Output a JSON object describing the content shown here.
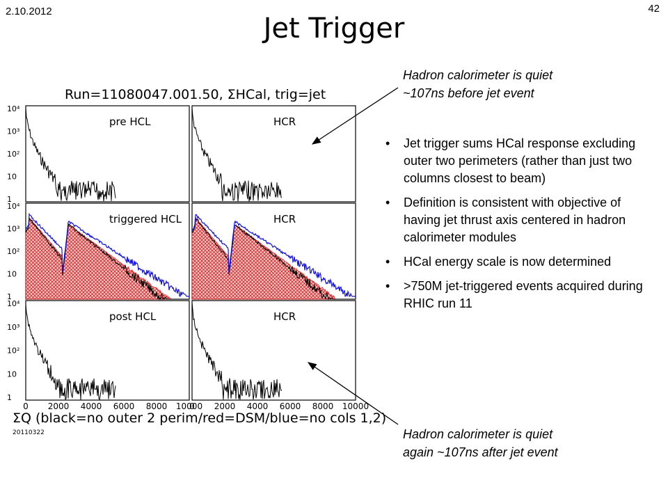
{
  "slide": {
    "date": "2.10.2012",
    "number": "42",
    "title": "Jet Trigger"
  },
  "notes": {
    "top": [
      "Hadron calorimeter is quiet",
      "~107ns before jet event"
    ],
    "bottom": [
      "Hadron calorimeter is quiet",
      "again ~107ns after jet event"
    ]
  },
  "bullets": [
    "Jet trigger sums HCal response excluding outer two perimeters (rather than just two columns closest to beam)",
    "Definition is consistent with objective of having jet thrust axis centered in hadron calorimeter modules",
    "HCal energy scale is now determined",
    ">750M jet-triggered events acquired during RHIC run 11"
  ],
  "figure": {
    "header": "Run=11080047.001.50, ΣHCal, trig=jet",
    "xaxis_caption": "ΣQ (black=no outer 2 perim/red=DSM/blue=no cols 1,2)",
    "datestamp": "20110322",
    "panel_labels": [
      "pre HCL",
      "HCR",
      "triggered HCL",
      "HCR",
      "post HCL",
      "HCR"
    ],
    "x_ticks": [
      "0",
      "2000",
      "4000",
      "6000",
      "8000",
      "10000"
    ],
    "y_ticks": [
      "10⁴",
      "10³",
      "10²",
      "10",
      "1"
    ],
    "colors": {
      "black": "#000000",
      "red": "#d42020",
      "blue": "#1010e0",
      "fill": "#f2b8b8"
    }
  }
}
